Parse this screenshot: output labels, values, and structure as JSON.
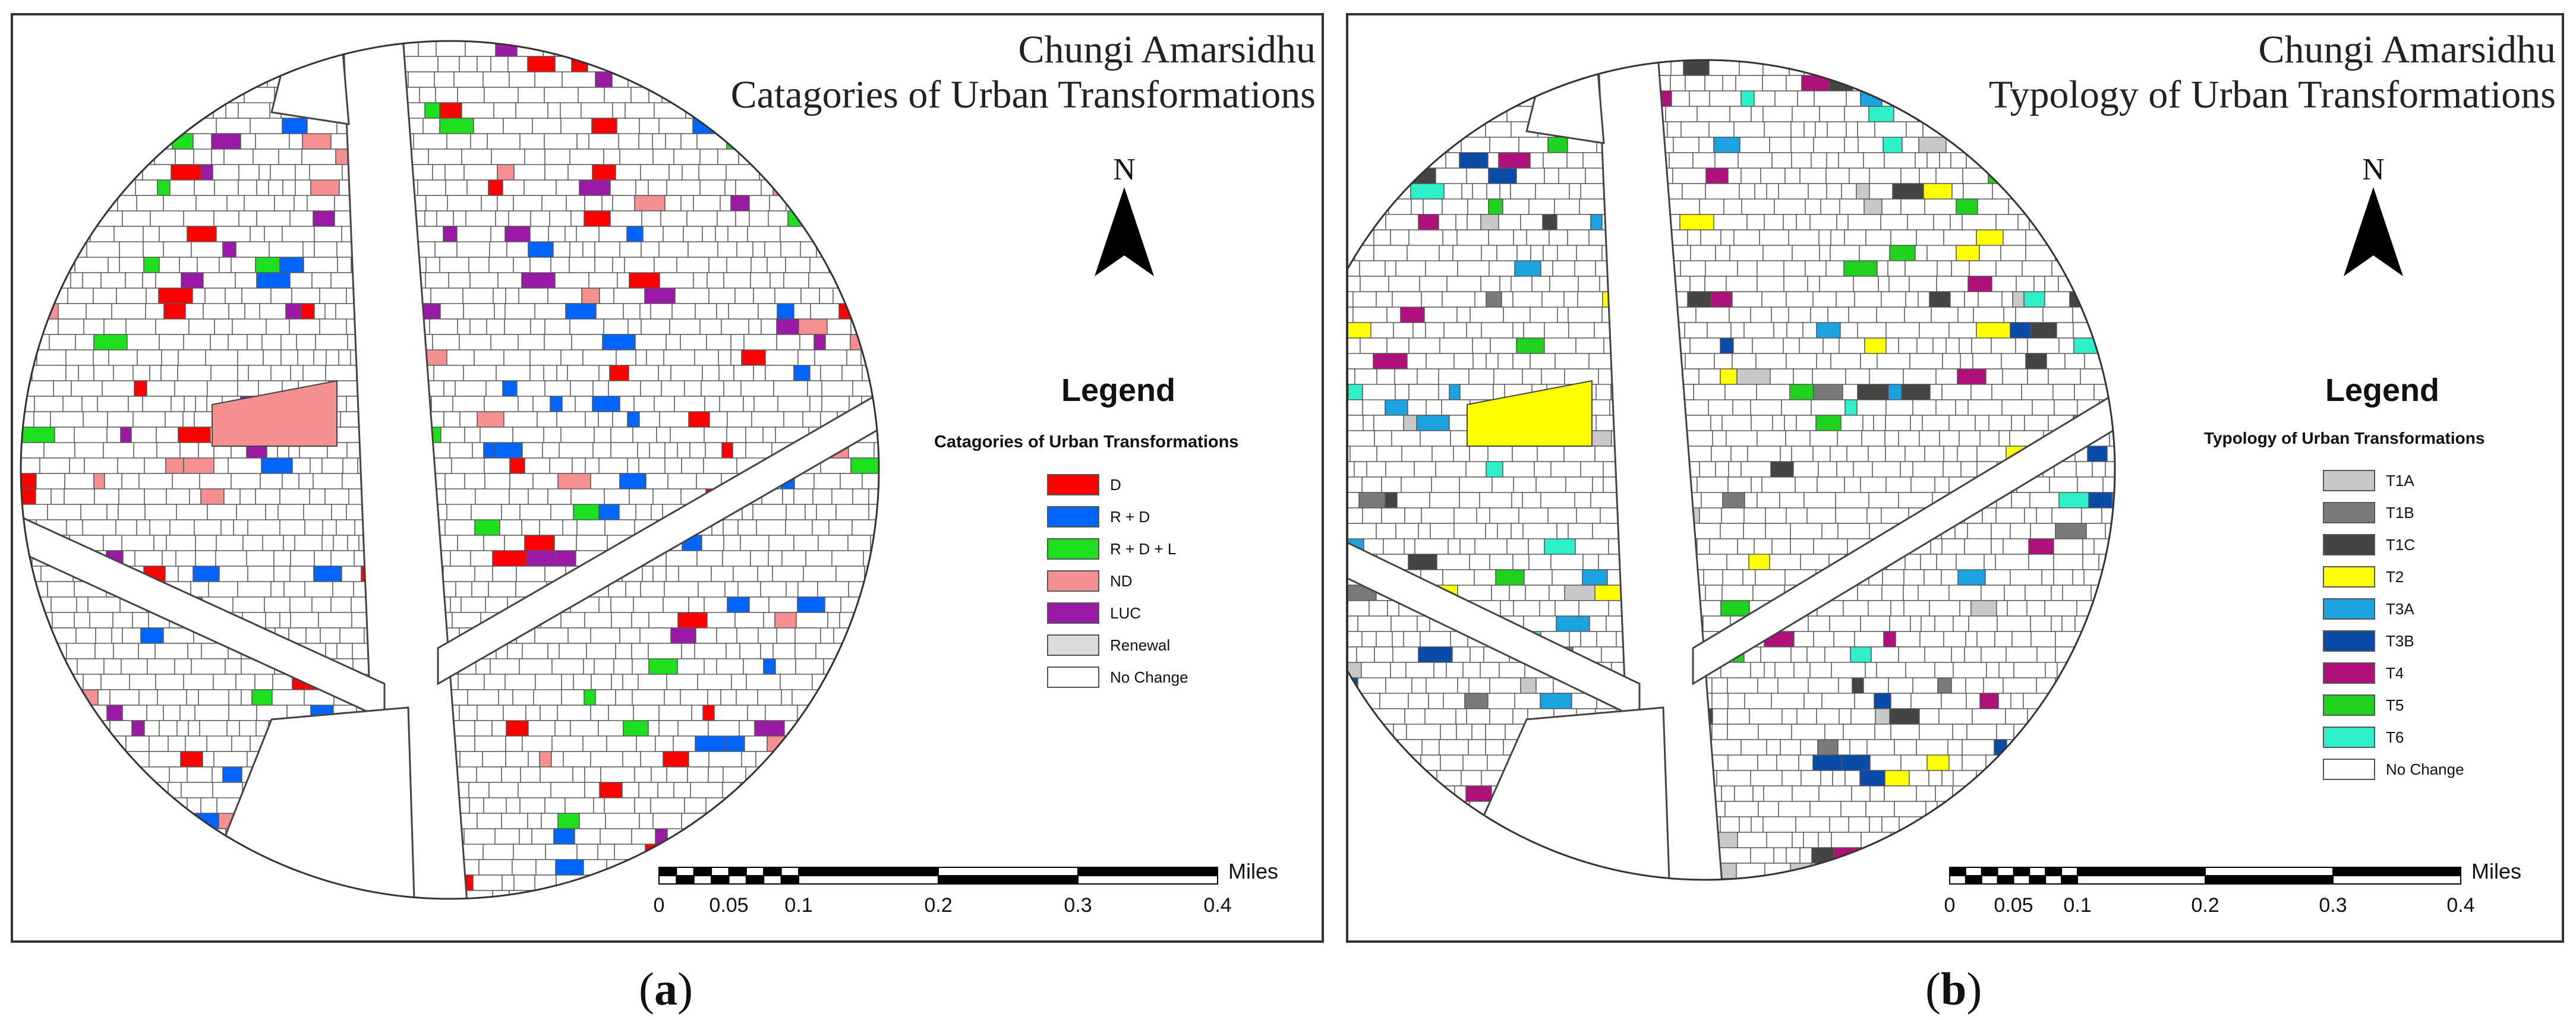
{
  "panels": [
    {
      "title_line1": "Chungi Amarsidhu",
      "title_line2": "Catagories of Urban Transformations",
      "north": "N",
      "legend_title": "Legend",
      "legend_subtitle": "Catagories of Urban Transformations",
      "legend_items": [
        {
          "label": "D",
          "color": "#ff0000"
        },
        {
          "label": "R + D",
          "color": "#0066ff"
        },
        {
          "label": "R + D + L",
          "color": "#1ee01e"
        },
        {
          "label": "ND",
          "color": "#f49090"
        },
        {
          "label": "LUC",
          "color": "#9a1aa6"
        },
        {
          "label": "Renewal",
          "color": "#dcdcdc"
        },
        {
          "label": "No Change",
          "color": "#ffffff"
        }
      ],
      "scale_ticks": [
        "0",
        "0.05",
        "0.1",
        "0.2",
        "0.3",
        "0.4"
      ],
      "scale_unit": "Miles",
      "caption_open": "(",
      "caption_letter": "a",
      "caption_close": ")"
    },
    {
      "title_line1": "Chungi Amarsidhu",
      "title_line2": "Typology of Urban Transformations",
      "north": "N",
      "legend_title": "Legend",
      "legend_subtitle": "Typology of Urban Transformations",
      "legend_items": [
        {
          "label": "T1A",
          "color": "#c8c8c8"
        },
        {
          "label": "T1B",
          "color": "#7a7a7a"
        },
        {
          "label": "T1C",
          "color": "#444444"
        },
        {
          "label": "T2",
          "color": "#ffff00"
        },
        {
          "label": "T3A",
          "color": "#1aa3e0"
        },
        {
          "label": "T3B",
          "color": "#0a4aa8"
        },
        {
          "label": "T4",
          "color": "#b0107a"
        },
        {
          "label": "T5",
          "color": "#1ed21e"
        },
        {
          "label": "T6",
          "color": "#2ef0c8"
        },
        {
          "label": "No Change",
          "color": "#ffffff"
        }
      ],
      "scale_ticks": [
        "0",
        "0.05",
        "0.1",
        "0.2",
        "0.3",
        "0.4"
      ],
      "scale_unit": "Miles",
      "caption_open": "(",
      "caption_letter": "b",
      "caption_close": ")"
    }
  ]
}
